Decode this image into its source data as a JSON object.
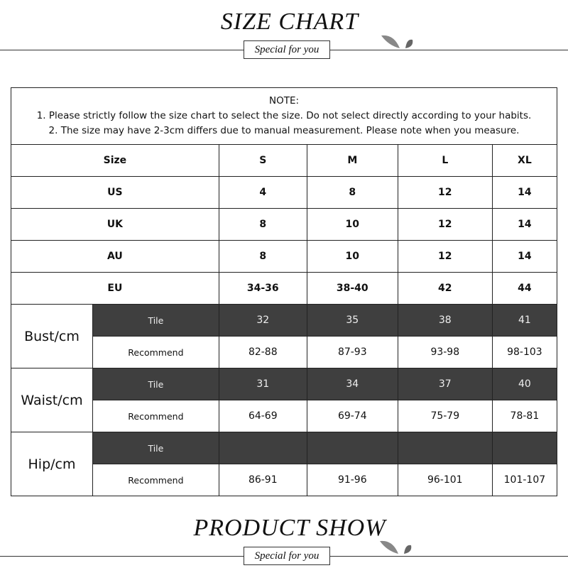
{
  "header": {
    "title": "SIZE CHART",
    "subtitle": "Special for you"
  },
  "note": {
    "heading": "NOTE:",
    "lines": [
      "1. Please strictly follow the size chart  to select the size. Do not select directly according to your habits.",
      "2. The size may have 2-3cm differs due to manual measurement. Please note when you measure."
    ]
  },
  "table": {
    "header": [
      "Size",
      "S",
      "M",
      "L",
      "XL"
    ],
    "size_rows": [
      {
        "label": "US",
        "values": [
          "4",
          "8",
          "12",
          "14"
        ]
      },
      {
        "label": "UK",
        "values": [
          "8",
          "10",
          "12",
          "14"
        ]
      },
      {
        "label": "AU",
        "values": [
          "8",
          "10",
          "12",
          "14"
        ]
      },
      {
        "label": "EU",
        "values": [
          "34-36",
          "38-40",
          "42",
          "44"
        ]
      }
    ],
    "measure_rows": [
      {
        "label": "Bust/cm",
        "tile_label": "Tile",
        "tile": [
          "32",
          "35",
          "38",
          "41"
        ],
        "rec_label": "Recommend",
        "recommend": [
          "82-88",
          "87-93",
          "93-98",
          "98-103"
        ]
      },
      {
        "label": "Waist/cm",
        "tile_label": "Tile",
        "tile": [
          "31",
          "34",
          "37",
          "40"
        ],
        "rec_label": "Recommend",
        "recommend": [
          "64-69",
          "69-74",
          "75-79",
          "78-81"
        ]
      },
      {
        "label": "Hip/cm",
        "tile_label": "Tile",
        "tile": [
          "",
          "",
          "",
          ""
        ],
        "rec_label": "Recommend",
        "recommend": [
          "86-91",
          "91-96",
          "96-101",
          "101-107"
        ]
      }
    ]
  },
  "footer": {
    "title": "PRODUCT SHOW",
    "subtitle": "Special for you"
  },
  "colors": {
    "dark_row": "#3f3f3f"
  }
}
